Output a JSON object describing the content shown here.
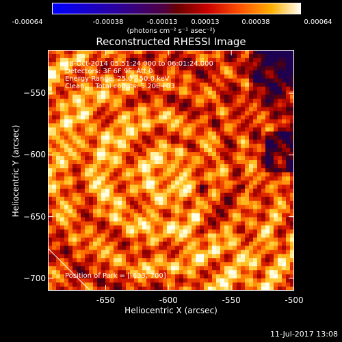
{
  "colorbar": {
    "tick_labels": [
      "-0.00064",
      "-0.00038",
      "-0.00013",
      "0.00013",
      "0.00038",
      "0.00064"
    ],
    "units_label": "(photons cm⁻² s⁻¹ asec⁻²)",
    "range": [
      -0.00064,
      0.00064
    ]
  },
  "chart_data": {
    "type": "heatmap",
    "title": "Reconstructed RHESSI Image",
    "xlabel": "Heliocentric X (arcsec)",
    "ylabel": "Heliocentric Y (arcsec)",
    "xlim": [
      -696,
      -500
    ],
    "ylim": [
      -710,
      -515
    ],
    "x_ticks": [
      -650,
      -600,
      -550,
      -500
    ],
    "y_ticks": [
      -550,
      -600,
      -650,
      -700
    ],
    "x_tick_labels": [
      "-650",
      "-600",
      "-550",
      "-500"
    ],
    "y_tick_labels": [
      "−550",
      "−600",
      "−650",
      "−700"
    ],
    "annotations": [
      "28-Oct-2014 05:51:24.000 to 06:01:24.000",
      "Detectors: 3F 6F 9F, Att 0",
      "Energy Range: 25.0 - 50.0 keV",
      "Clean     Total counts: 5.20E+03"
    ],
    "position_label": "Position of Park = [-633,-700]",
    "colormap": "red-temperature with blue negatives"
  },
  "footer": {
    "date": "11-Jul-2017 13:08"
  },
  "colors": {
    "background": "#000000",
    "text": "#ffffff"
  }
}
